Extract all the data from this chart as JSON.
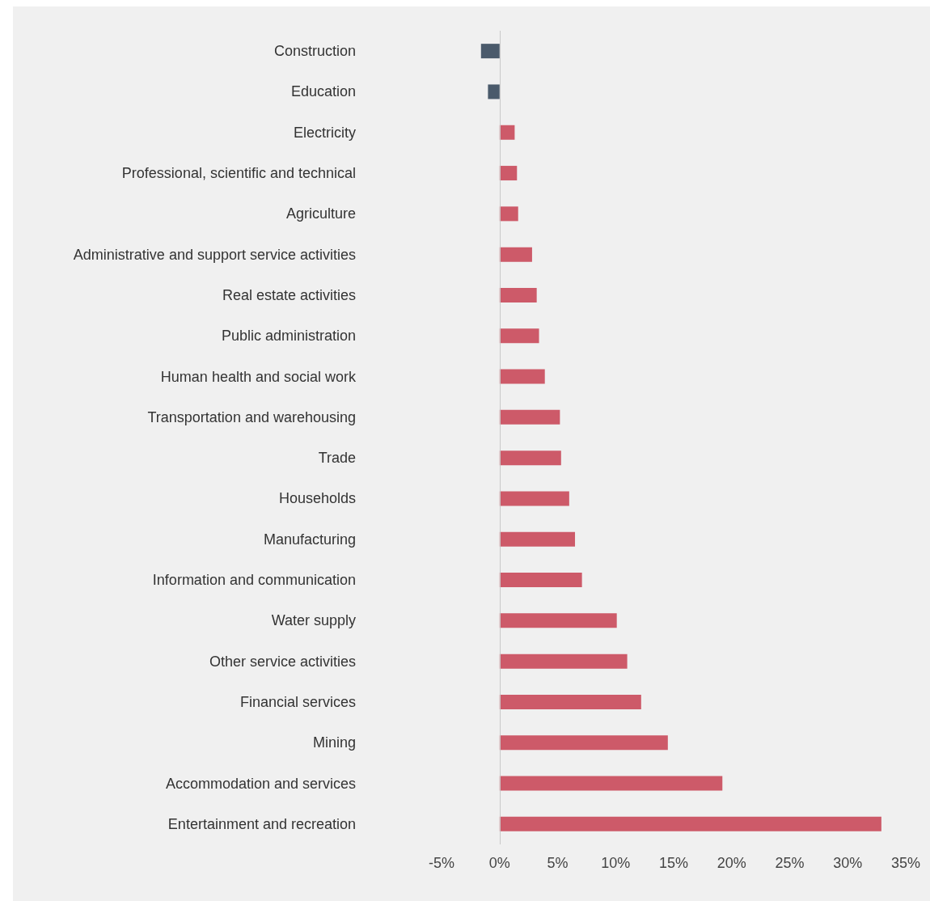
{
  "chart_data": {
    "type": "bar",
    "orientation": "horizontal",
    "categories": [
      "Construction",
      "Education",
      "Electricity",
      "Professional, scientific and technical",
      "Agriculture",
      "Administrative and support service activities",
      "Real estate activities",
      "Public administration",
      "Human health and social work",
      "Transportation and warehousing",
      "Trade",
      "Households",
      "Manufacturing",
      "Information and communication",
      "Water supply",
      "Other service activities",
      "Financial services",
      "Mining",
      "Accommodation and services",
      "Entertainment and recreation"
    ],
    "values": [
      -1.6,
      -1.0,
      1.3,
      1.5,
      1.6,
      2.8,
      3.2,
      3.4,
      3.9,
      5.2,
      5.3,
      6.0,
      6.5,
      7.1,
      10.1,
      11.0,
      12.2,
      14.5,
      19.2,
      32.9
    ],
    "colors": [
      "#4a5a6b",
      "#4a5a6b",
      "#cd5a69",
      "#cd5a69",
      "#cd5a69",
      "#cd5a69",
      "#cd5a69",
      "#cd5a69",
      "#cd5a69",
      "#cd5a69",
      "#cd5a69",
      "#cd5a69",
      "#cd5a69",
      "#cd5a69",
      "#cd5a69",
      "#cd5a69",
      "#cd5a69",
      "#cd5a69",
      "#cd5a69",
      "#cd5a69"
    ],
    "xlim": [
      -5,
      35
    ],
    "xticks": [
      {
        "value": -5,
        "label": "-5%"
      },
      {
        "value": 0,
        "label": "0%"
      },
      {
        "value": 5,
        "label": "5%"
      },
      {
        "value": 10,
        "label": "10%"
      },
      {
        "value": 15,
        "label": "15%"
      },
      {
        "value": 20,
        "label": "20%"
      },
      {
        "value": 25,
        "label": "25%"
      },
      {
        "value": 30,
        "label": "30%"
      },
      {
        "value": 35,
        "label": "35%"
      }
    ],
    "ref_lines": [
      {
        "axis": "x",
        "value": 0,
        "color": "#c8c8c8"
      }
    ]
  }
}
